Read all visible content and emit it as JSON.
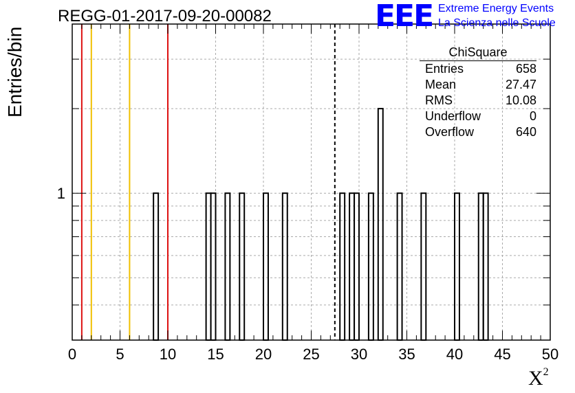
{
  "header": {
    "title": "REGG-01-2017-09-20-00082",
    "logo_text": "EEE",
    "subtitle_line1": "Extreme Energy Events",
    "subtitle_line2": "La Scienza nelle Scuole"
  },
  "stats": {
    "name": "ChiSquare",
    "rows": [
      {
        "label": "Entries",
        "value": "658"
      },
      {
        "label": "Mean",
        "value": "27.47"
      },
      {
        "label": "RMS",
        "value": "10.08"
      },
      {
        "label": "Underflow",
        "value": "0"
      },
      {
        "label": "Overflow",
        "value": "640"
      }
    ]
  },
  "chart_data": {
    "type": "bar",
    "title": "REGG-01-2017-09-20-00082",
    "xlabel": "X",
    "xlabel_sup": "2",
    "ylabel": "Entries/bin",
    "xlim": [
      0,
      50
    ],
    "ylim": [
      0.3,
      4
    ],
    "yscale": "log",
    "grid": true,
    "bin_width": 0.5,
    "xticks": [
      0,
      5,
      10,
      15,
      20,
      25,
      30,
      35,
      40,
      45,
      50
    ],
    "yticks": [
      1
    ],
    "bins": [
      {
        "x": 8.5,
        "count": 1
      },
      {
        "x": 14.0,
        "count": 1
      },
      {
        "x": 14.5,
        "count": 1
      },
      {
        "x": 16.0,
        "count": 1
      },
      {
        "x": 17.5,
        "count": 1
      },
      {
        "x": 20.0,
        "count": 1
      },
      {
        "x": 22.0,
        "count": 1
      },
      {
        "x": 28.0,
        "count": 1
      },
      {
        "x": 29.0,
        "count": 1
      },
      {
        "x": 29.5,
        "count": 1
      },
      {
        "x": 31.0,
        "count": 1
      },
      {
        "x": 32.0,
        "count": 2
      },
      {
        "x": 34.0,
        "count": 1
      },
      {
        "x": 36.5,
        "count": 1
      },
      {
        "x": 40.0,
        "count": 1
      },
      {
        "x": 42.5,
        "count": 1
      },
      {
        "x": 43.0,
        "count": 1
      }
    ],
    "reference_lines": [
      {
        "x": 1,
        "color": "#dd1111",
        "style": "solid"
      },
      {
        "x": 2,
        "color": "#f0c000",
        "style": "solid"
      },
      {
        "x": 6,
        "color": "#f0c000",
        "style": "solid"
      },
      {
        "x": 10,
        "color": "#dd1111",
        "style": "solid"
      },
      {
        "x": 27.47,
        "color": "#000000",
        "style": "dashed"
      }
    ]
  }
}
